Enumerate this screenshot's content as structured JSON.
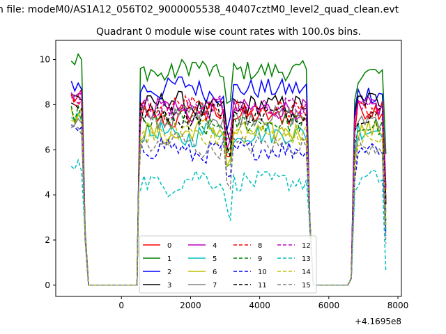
{
  "suptitle": "n file: modeM0/AS1A12_056T02_9000005538_40407cztM0_level2_quad_clean.evt",
  "chart_data": {
    "type": "line",
    "title": "Quadrant 0 module wise count rates with 100.0s bins.",
    "xlabel": "",
    "ylabel": "",
    "xlim": [
      -1900,
      8100
    ],
    "ylim": [
      -0.5,
      10.85
    ],
    "x_offset_label": "+4.1695e8",
    "xticks": [
      0,
      2000,
      4000,
      6000,
      8000
    ],
    "xtick_labels": [
      "0",
      "2000",
      "4000",
      "6000",
      "8000"
    ],
    "yticks": [
      0,
      2,
      4,
      6,
      8,
      10
    ],
    "ytick_labels": [
      "0",
      "2",
      "4",
      "6",
      "8",
      "10"
    ],
    "grid": false,
    "legend_position": "lower center",
    "segments": [
      {
        "x_start": -1450,
        "x_end": 450
      },
      {
        "x_start": 450,
        "x_end": 5450
      },
      {
        "x_start": 5450,
        "x_end": 7650
      }
    ],
    "levels": {
      "off_x": [
        -1050,
        450,
        5450,
        6650
      ]
    },
    "series": [
      {
        "name": "0",
        "color": "#ff0000",
        "dash": "solid",
        "level": 7.5,
        "pre": 8.3,
        "post": 7.8
      },
      {
        "name": "1",
        "color": "#008000",
        "dash": "solid",
        "level": 9.5,
        "pre": 10.0,
        "post": 9.4
      },
      {
        "name": "2",
        "color": "#0000ff",
        "dash": "solid",
        "level": 8.7,
        "pre": 8.9,
        "post": 8.5
      },
      {
        "name": "3",
        "color": "#000000",
        "dash": "solid",
        "level": 8.0,
        "pre": 8.3,
        "post": 8.2
      },
      {
        "name": "4",
        "color": "#bf00bf",
        "dash": "solid",
        "level": 7.8,
        "pre": 8.5,
        "post": 7.9
      },
      {
        "name": "5",
        "color": "#00bfbf",
        "dash": "solid",
        "level": 6.7,
        "pre": 7.3,
        "post": 6.9
      },
      {
        "name": "6",
        "color": "#bfbf00",
        "dash": "solid",
        "level": 6.8,
        "pre": 7.5,
        "post": 6.9
      },
      {
        "name": "7",
        "color": "#808080",
        "dash": "solid",
        "level": 7.5,
        "pre": 7.2,
        "post": 7.4
      },
      {
        "name": "8",
        "color": "#ff0000",
        "dash": "dashed",
        "level": 7.8,
        "pre": 8.2,
        "post": 7.7
      },
      {
        "name": "9",
        "color": "#008000",
        "dash": "dashed",
        "level": 7.2,
        "pre": 7.6,
        "post": 7.0
      },
      {
        "name": "10",
        "color": "#0000ff",
        "dash": "dashed",
        "level": 6.0,
        "pre": 6.8,
        "post": 6.1
      },
      {
        "name": "11",
        "color": "#000000",
        "dash": "dashed",
        "level": 7.6,
        "pre": 8.0,
        "post": 7.6
      },
      {
        "name": "12",
        "color": "#bf00bf",
        "dash": "dashed",
        "level": 7.9,
        "pre": 8.4,
        "post": 8.0
      },
      {
        "name": "13",
        "color": "#00bfbf",
        "dash": "dashed",
        "level": 4.6,
        "pre": 5.2,
        "post": 4.7
      },
      {
        "name": "14",
        "color": "#bfbf00",
        "dash": "dashed",
        "level": 6.7,
        "pre": 7.2,
        "post": 6.4
      },
      {
        "name": "15",
        "color": "#808080",
        "dash": "dashed",
        "level": 6.2,
        "pre": 7.0,
        "post": 6.2
      }
    ]
  }
}
